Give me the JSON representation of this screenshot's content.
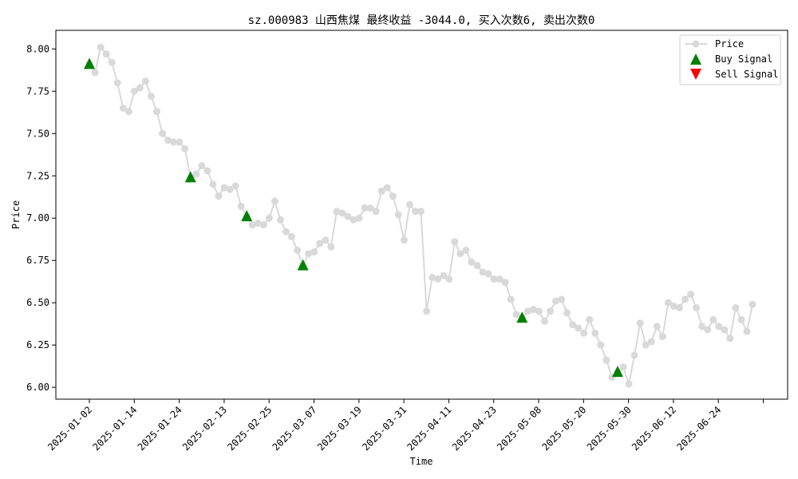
{
  "chart_data": {
    "type": "line",
    "title": "sz.000983 山西焦煤 最终收益 -3044.0, 买入次数6, 卖出次数0",
    "xlabel": "Time",
    "ylabel": "Price",
    "ylim": [
      5.93,
      8.11
    ],
    "yticks": [
      6.0,
      6.25,
      6.5,
      6.75,
      7.0,
      7.25,
      7.5,
      7.75,
      8.0
    ],
    "ytick_labels": [
      "6.00",
      "6.25",
      "6.50",
      "6.75",
      "7.00",
      "7.25",
      "7.50",
      "7.75",
      "8.00"
    ],
    "xtick_labels": [
      "2025-01-02",
      "2025-01-14",
      "2025-01-24",
      "2025-02-13",
      "2025-02-25",
      "2025-03-07",
      "2025-03-19",
      "2025-03-31",
      "2025-04-11",
      "2025-04-23",
      "2025-05-08",
      "2025-05-20",
      "2025-05-30",
      "2025-06-12",
      "2025-06-24",
      ""
    ],
    "legend_position": "upper right",
    "grid": false,
    "series": [
      {
        "name": "Price",
        "kind": "line-marker",
        "color": "#d9d9d9",
        "values": [
          7.91,
          7.86,
          8.01,
          7.97,
          7.92,
          7.8,
          7.65,
          7.63,
          7.75,
          7.77,
          7.81,
          7.72,
          7.63,
          7.5,
          7.46,
          7.45,
          7.45,
          7.41,
          7.24,
          7.26,
          7.31,
          7.28,
          7.2,
          7.13,
          7.18,
          7.17,
          7.19,
          7.07,
          7.01,
          6.96,
          6.97,
          6.96,
          7.0,
          7.1,
          6.99,
          6.92,
          6.89,
          6.81,
          6.72,
          6.79,
          6.8,
          6.85,
          6.87,
          6.83,
          7.04,
          7.03,
          7.01,
          6.99,
          7.0,
          7.06,
          7.06,
          7.04,
          7.16,
          7.18,
          7.13,
          7.02,
          6.87,
          7.08,
          7.04,
          7.04,
          6.45,
          6.65,
          6.64,
          6.66,
          6.64,
          6.86,
          6.79,
          6.81,
          6.74,
          6.72,
          6.68,
          6.67,
          6.64,
          6.64,
          6.62,
          6.52,
          6.43,
          6.41,
          6.45,
          6.46,
          6.45,
          6.39,
          6.45,
          6.51,
          6.52,
          6.44,
          6.37,
          6.35,
          6.32,
          6.4,
          6.32,
          6.25,
          6.16,
          6.06,
          6.09,
          6.12,
          6.02,
          6.19,
          6.38,
          6.25,
          6.27,
          6.36,
          6.3,
          6.5,
          6.48,
          6.47,
          6.52,
          6.55,
          6.47,
          6.36,
          6.34,
          6.4,
          6.36,
          6.34,
          6.29,
          6.47,
          6.4,
          6.33,
          6.49
        ]
      },
      {
        "name": "Buy Signal",
        "kind": "marker-up",
        "color": "#008000",
        "points": [
          [
            0,
            7.91
          ],
          [
            18,
            7.24
          ],
          [
            28,
            7.01
          ],
          [
            38,
            6.72
          ],
          [
            77,
            6.41
          ],
          [
            94,
            6.09
          ]
        ]
      },
      {
        "name": "Sell Signal",
        "kind": "marker-down",
        "color": "#ff0000",
        "points": []
      }
    ]
  }
}
